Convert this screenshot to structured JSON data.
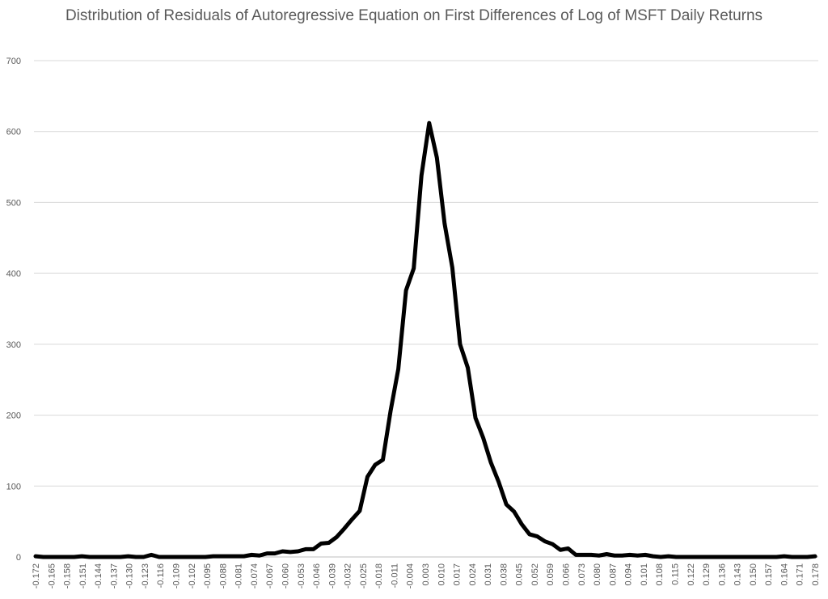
{
  "chart_data": {
    "type": "line",
    "title": "Distribution of Residuals of Autoregressive Equation on First Differences of Log of MSFT Daily Returns",
    "xlabel": "",
    "ylabel": "",
    "ylim": [
      0,
      700
    ],
    "y_ticks": [
      "0",
      "100",
      "200",
      "300",
      "400",
      "500",
      "600",
      "700"
    ],
    "x_tick_labels": [
      "-0.172",
      "-0.165",
      "-0.158",
      "-0.151",
      "-0.144",
      "-0.137",
      "-0.130",
      "-0.123",
      "-0.116",
      "-0.109",
      "-0.102",
      "-0.095",
      "-0.088",
      "-0.081",
      "-0.074",
      "-0.067",
      "-0.060",
      "-0.053",
      "-0.046",
      "-0.039",
      "-0.032",
      "-0.025",
      "-0.018",
      "-0.011",
      "-0.004",
      "0.003",
      "0.010",
      "0.017",
      "0.024",
      "0.031",
      "0.038",
      "0.045",
      "0.052",
      "0.059",
      "0.066",
      "0.073",
      "0.080",
      "0.087",
      "0.094",
      "0.101",
      "0.108",
      "0.115",
      "0.122",
      "0.129",
      "0.136",
      "0.143",
      "0.150",
      "0.157",
      "0.164",
      "0.171",
      "0.178"
    ],
    "grid": true,
    "legend": "none",
    "line_color": "#000000",
    "series": [
      {
        "values": [
          1,
          0,
          0,
          0,
          0,
          0,
          1,
          0,
          0,
          0,
          0,
          0,
          1,
          0,
          0,
          3,
          0,
          0,
          0,
          0,
          0,
          0,
          0,
          1,
          1,
          1,
          1,
          1,
          3,
          2,
          5,
          5,
          8,
          7,
          8,
          11,
          11,
          19,
          20,
          28,
          40,
          53,
          65,
          113,
          130,
          137,
          206,
          265,
          376,
          407,
          538,
          612,
          563,
          470,
          408,
          300,
          267,
          196,
          168,
          133,
          106,
          74,
          64,
          46,
          32,
          29,
          22,
          18,
          10,
          12,
          3,
          3,
          3,
          2,
          4,
          2,
          2,
          3,
          2,
          3,
          1,
          0,
          1,
          0,
          0,
          0,
          0,
          0,
          0,
          0,
          0,
          0,
          0,
          0,
          0,
          0,
          0,
          1,
          0,
          0,
          0,
          1
        ]
      }
    ]
  }
}
